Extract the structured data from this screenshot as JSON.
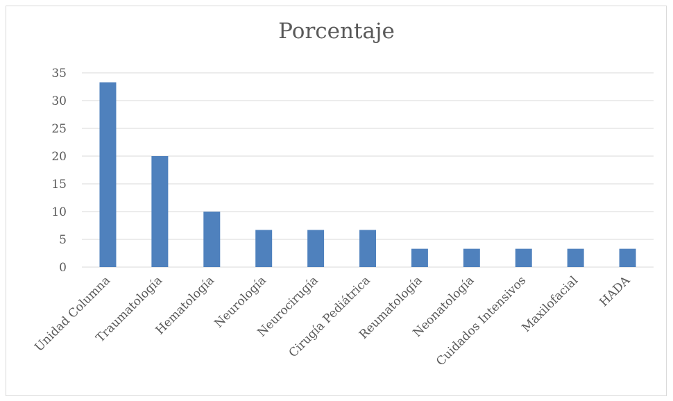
{
  "chart_data": {
    "type": "bar",
    "title": "Porcentaje",
    "xlabel": "",
    "ylabel": "",
    "categories": [
      "Unidad Columna",
      "Traumatología",
      "Hematología",
      "Neurología",
      "Neurocirugía",
      "Cirugía Pediátrica",
      "Reumatología",
      "Neonatología",
      "Cuidados Intensivos",
      "Maxilofacial",
      "HADA"
    ],
    "values": [
      33.3,
      20.0,
      10.0,
      6.7,
      6.7,
      6.7,
      3.3,
      3.3,
      3.3,
      3.3,
      3.3
    ],
    "ylim": [
      0,
      35
    ],
    "yticks": [
      0,
      5,
      10,
      15,
      20,
      25,
      30,
      35
    ],
    "grid": true,
    "legend": "none",
    "colors": {
      "bar": "#4f81bd",
      "grid": "#d9d9d9",
      "text": "#595959"
    }
  }
}
